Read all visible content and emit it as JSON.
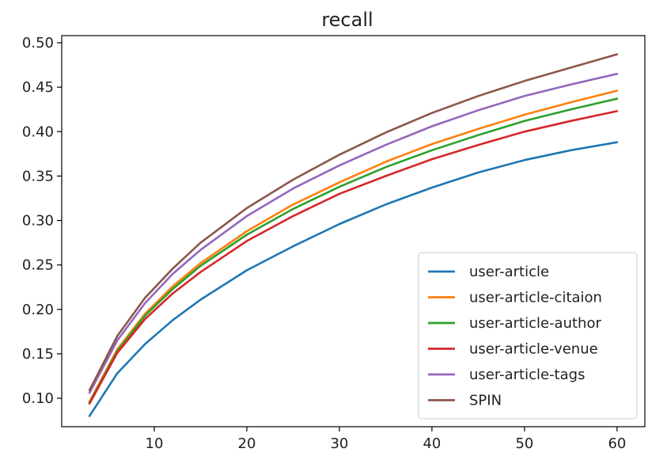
{
  "chart_data": {
    "type": "line",
    "title": "recall",
    "xlabel": "",
    "ylabel": "",
    "xlim": [
      0.0,
      63.0
    ],
    "ylim": [
      0.068,
      0.508
    ],
    "x_ticks": [
      10,
      20,
      30,
      40,
      50,
      60
    ],
    "x_tick_labels": [
      "10",
      "20",
      "30",
      "40",
      "50",
      "60"
    ],
    "y_ticks": [
      0.1,
      0.15,
      0.2,
      0.25,
      0.3,
      0.35,
      0.4,
      0.45,
      0.5
    ],
    "y_tick_labels": [
      "0.10",
      "0.15",
      "0.20",
      "0.25",
      "0.30",
      "0.35",
      "0.40",
      "0.45",
      "0.50"
    ],
    "grid": false,
    "legend_position": "bottom-right",
    "x": [
      3,
      6,
      9,
      12,
      15,
      20,
      25,
      30,
      35,
      40,
      45,
      50,
      55,
      60
    ],
    "series": [
      {
        "name": "user-article",
        "color": "#1f77b4",
        "values": [
          0.08,
          0.128,
          0.161,
          0.188,
          0.211,
          0.244,
          0.271,
          0.296,
          0.318,
          0.337,
          0.354,
          0.368,
          0.379,
          0.388
        ]
      },
      {
        "name": "user-article-citaion",
        "color": "#ff7f0e",
        "values": [
          0.096,
          0.155,
          0.195,
          0.226,
          0.252,
          0.288,
          0.318,
          0.343,
          0.366,
          0.386,
          0.403,
          0.419,
          0.433,
          0.446
        ]
      },
      {
        "name": "user-article-author",
        "color": "#2ca02c",
        "values": [
          0.095,
          0.153,
          0.193,
          0.223,
          0.249,
          0.284,
          0.313,
          0.338,
          0.36,
          0.379,
          0.396,
          0.412,
          0.425,
          0.437
        ]
      },
      {
        "name": "user-article-venue",
        "color": "#d62728",
        "values": [
          0.094,
          0.151,
          0.189,
          0.218,
          0.242,
          0.277,
          0.305,
          0.33,
          0.35,
          0.369,
          0.385,
          0.4,
          0.412,
          0.423
        ]
      },
      {
        "name": "user-article-tags",
        "color": "#9467bd",
        "values": [
          0.106,
          0.165,
          0.207,
          0.24,
          0.267,
          0.305,
          0.336,
          0.362,
          0.385,
          0.406,
          0.424,
          0.44,
          0.453,
          0.465
        ]
      },
      {
        "name": "SPIN",
        "color": "#8c564b",
        "values": [
          0.109,
          0.17,
          0.213,
          0.246,
          0.275,
          0.314,
          0.346,
          0.374,
          0.399,
          0.421,
          0.44,
          0.457,
          0.472,
          0.487
        ]
      }
    ]
  }
}
